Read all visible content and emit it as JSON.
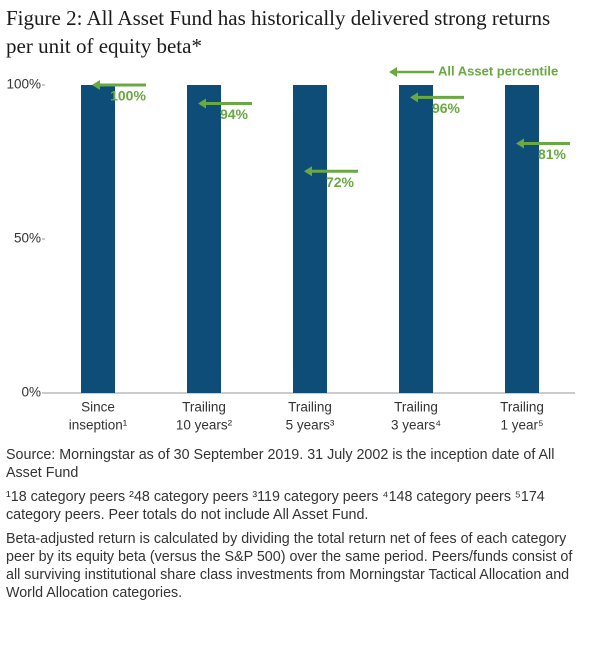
{
  "chart_data": {
    "type": "bar",
    "title": "Figure 2: All Asset Fund has historically delivered strong returns per unit of equity beta*",
    "categories": [
      [
        "Since",
        "inseption¹"
      ],
      [
        "Trailing",
        "10 years²"
      ],
      [
        "Trailing",
        "5 years³"
      ],
      [
        "Trailing",
        "3 years⁴"
      ],
      [
        "Trailing",
        "1 year⁵"
      ]
    ],
    "series": [
      {
        "color": "#0d4d78",
        "values": [
          100,
          100,
          100,
          100,
          100
        ]
      },
      {
        "name": "All Asset percentile",
        "color": "#6aa842",
        "values": [
          100,
          94,
          72,
          96,
          81
        ],
        "value_labels": [
          "100%",
          "94%",
          "72%",
          "96%",
          "81%"
        ]
      }
    ],
    "ylim": [
      0,
      100
    ],
    "yticks": [
      {
        "value": 0,
        "label": "0%"
      },
      {
        "value": 50,
        "label": "50%"
      },
      {
        "value": 100,
        "label": "100%"
      }
    ],
    "notes": [
      "Source: Morningstar as of 30 September 2019. 31 July 2002 is the inception date of All Asset Fund",
      "¹18 category peers ²48 category peers ³119 category peers ⁴148 category peers ⁵174 category peers. Peer totals do not include All Asset Fund.",
      "Beta-adjusted return is calculated by dividing the total return net of fees of each category peer by its equity beta (versus the S&P 500) over the same period. Peers/funds consist of all surviving institutional share class investments from Morningstar Tactical Allocation and World Allocation categories."
    ]
  }
}
